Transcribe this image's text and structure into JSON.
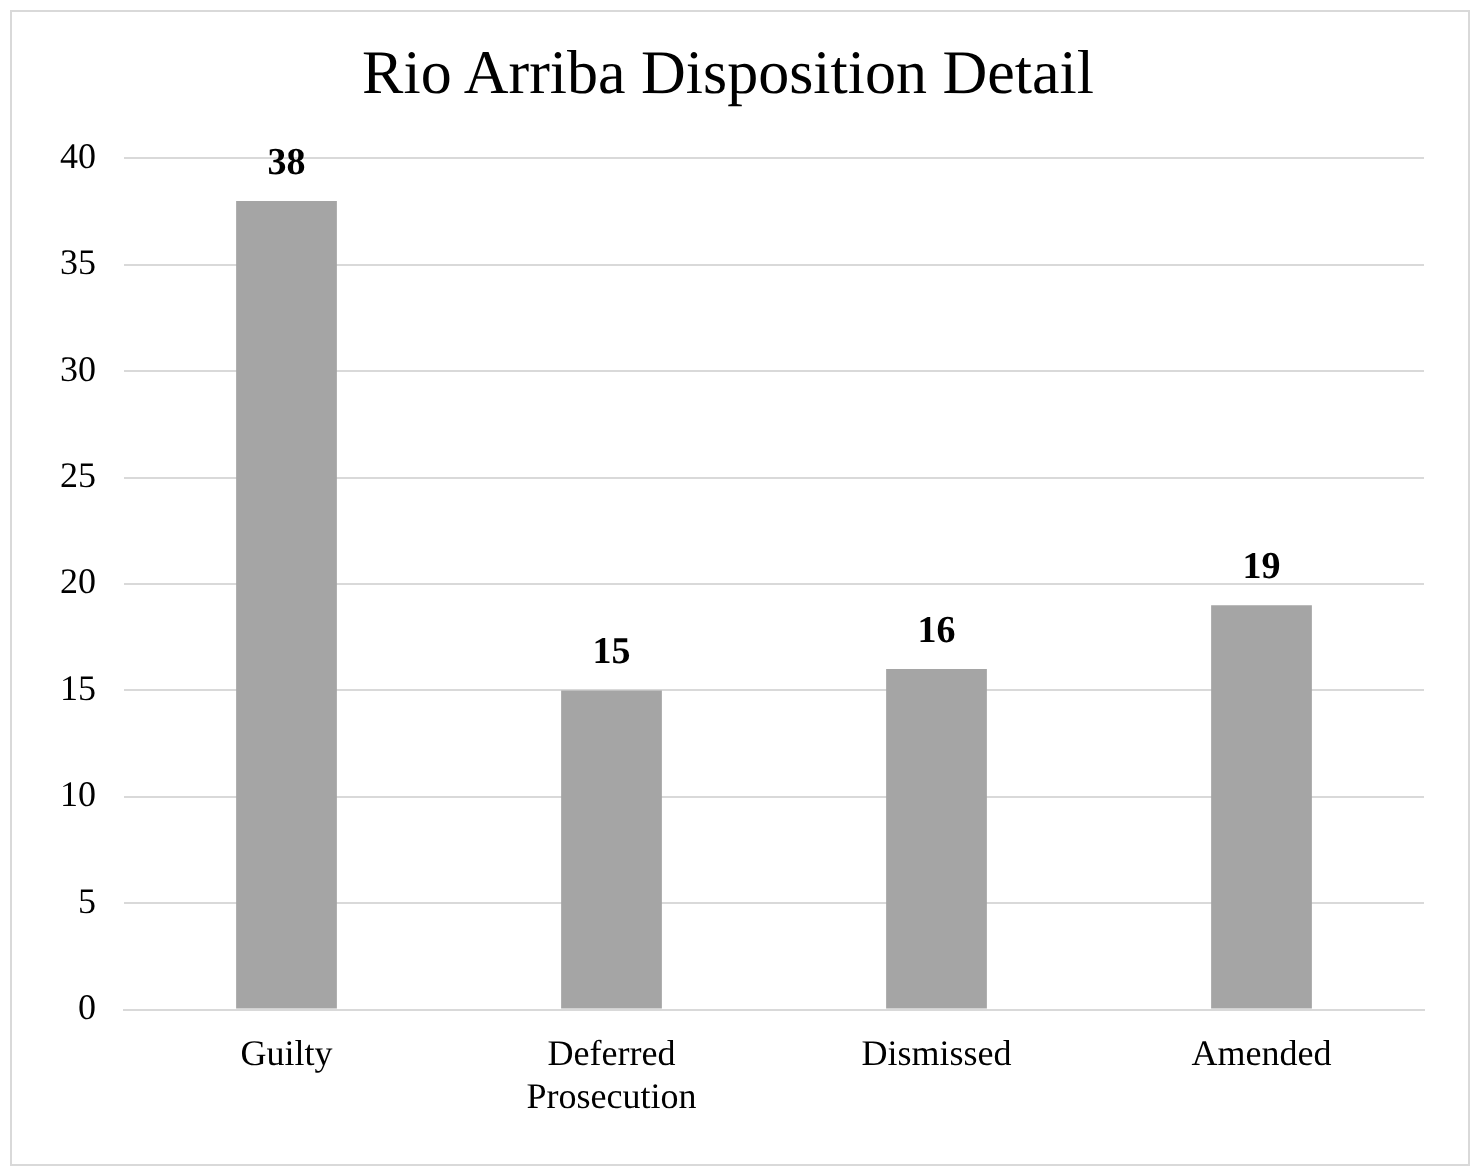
{
  "chart_data": {
    "type": "bar",
    "title": "Rio Arriba Disposition Detail",
    "categories": [
      "Guilty",
      "Deferred Prosecution",
      "Dismissed",
      "Amended"
    ],
    "values": [
      38,
      15,
      16,
      19
    ],
    "color": "#a5a5a5",
    "ylim": [
      0,
      40
    ],
    "yticks": [
      0,
      5,
      10,
      15,
      20,
      25,
      30,
      35,
      40
    ],
    "grid": "y",
    "data_labels": true,
    "legend": false
  }
}
